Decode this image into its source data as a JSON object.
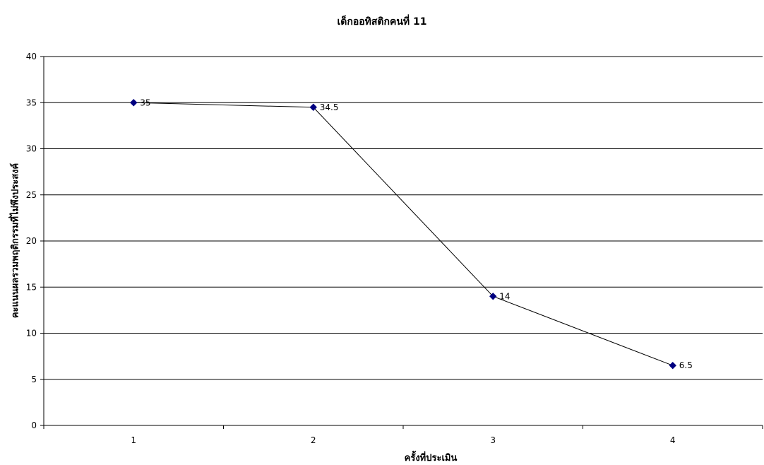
{
  "chart_data": {
    "type": "line",
    "title": "เด็กออทิสติกคนที่  11",
    "xlabel": "ครั้งที่ประเมิน",
    "ylabel": "คะแนนผลรวมพฤติกรรมที่ไม่พึงประสงค์",
    "categories": [
      "1",
      "2",
      "3",
      "4"
    ],
    "series": [
      {
        "values": [
          35,
          34.5,
          14,
          6.5
        ],
        "data_labels": [
          "35",
          "34.5",
          "14",
          "6.5"
        ]
      }
    ],
    "ylim": [
      0,
      40
    ],
    "yticks": [
      0,
      5,
      10,
      15,
      20,
      25,
      30,
      35,
      40
    ],
    "grid": true,
    "legend": "none",
    "colors": {
      "line": "#000000",
      "marker": "#000080",
      "grid": "#000000"
    }
  }
}
